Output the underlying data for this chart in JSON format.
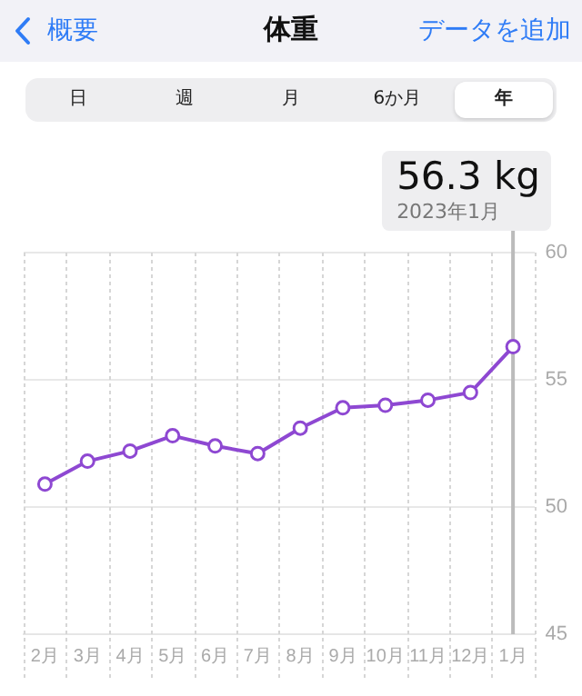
{
  "chart_data": {
    "type": "line",
    "title": "体重",
    "categories": [
      "2月",
      "3月",
      "4月",
      "5月",
      "6月",
      "7月",
      "8月",
      "9月",
      "10月",
      "11月",
      "12月",
      "1月"
    ],
    "series": [
      {
        "color": "#8e48d2",
        "values": [
          50.9,
          51.8,
          52.2,
          52.8,
          52.4,
          52.1,
          53.1,
          53.9,
          54.0,
          54.2,
          54.5,
          56.3
        ]
      }
    ],
    "ylim": [
      45,
      60
    ],
    "yticks": [
      45,
      50,
      55,
      60
    ],
    "grid": true,
    "legend": false,
    "marker": "circle",
    "line_style": "solid",
    "annotations": [
      "概要",
      "データを追加",
      "日",
      "週",
      "月",
      "6か月",
      "年",
      "56.3 kg",
      "2023年1月"
    ],
    "ref_lines": [
      {
        "axis": "x",
        "value": "1月",
        "color": "#bbbbbb"
      }
    ]
  }
}
